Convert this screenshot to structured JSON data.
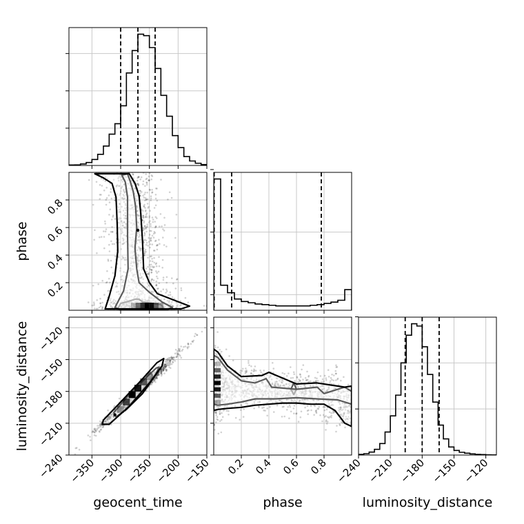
{
  "chart_data": {
    "type": "corner",
    "parameters": [
      "geocent_time",
      "phase",
      "luminosity_distance"
    ],
    "grid": true,
    "axes": {
      "geocent_time": {
        "range": [
          -390,
          -150
        ],
        "ticks": [
          -350,
          -300,
          -250,
          -200,
          -150
        ]
      },
      "phase": {
        "range": [
          0.0,
          1.0
        ],
        "ticks": [
          0.2,
          0.4,
          0.6,
          0.8
        ]
      },
      "luminosity_distance": {
        "range": [
          -240,
          -110
        ],
        "ticks": [
          -240,
          -210,
          -180,
          -150,
          -120
        ]
      }
    },
    "marginals": {
      "geocent_time": {
        "bin_edges": [
          -390,
          -380,
          -370,
          -360,
          -350,
          -340,
          -330,
          -320,
          -310,
          -300,
          -290,
          -280,
          -270,
          -260,
          -250,
          -240,
          -230,
          -220,
          -210,
          -200,
          -190,
          -180,
          -170,
          -160,
          -150
        ],
        "counts": [
          0.3,
          0.4,
          1.0,
          2.0,
          4.0,
          7.5,
          13.0,
          21.0,
          28.0,
          40.0,
          62.0,
          77.0,
          88.0,
          87.0,
          79.0,
          65.0,
          47.0,
          33.0,
          20.0,
          12.0,
          6.0,
          3.0,
          1.5,
          0.6
        ],
        "quantiles": [
          -300,
          -270,
          -240
        ],
        "y_ticks_count": [
          25,
          50,
          75
        ]
      },
      "phase": {
        "bin_edges": [
          0.0,
          0.05,
          0.1,
          0.15,
          0.2,
          0.25,
          0.3,
          0.35,
          0.4,
          0.45,
          0.5,
          0.55,
          0.6,
          0.65,
          0.7,
          0.75,
          0.8,
          0.85,
          0.9,
          0.95,
          1.0
        ],
        "counts": [
          210,
          40,
          28,
          18,
          14,
          12,
          10,
          9,
          8,
          7,
          7,
          7,
          7,
          7,
          8,
          9,
          11,
          13,
          16,
          33
        ],
        "quantiles": [
          0.003,
          0.13,
          0.78
        ],
        "y_ticks_count": [
          25,
          125,
          225
        ]
      },
      "luminosity_distance": {
        "bin_edges": [
          -240,
          -235,
          -230,
          -225,
          -220,
          -215,
          -210,
          -205,
          -200,
          -195,
          -190,
          -185,
          -180,
          -175,
          -170,
          -165,
          -160,
          -155,
          -150,
          -145,
          -140,
          -135,
          -130,
          -125,
          -120,
          -115,
          -110
        ],
        "counts": [
          0.3,
          0.6,
          1.3,
          2.5,
          5.0,
          10.0,
          17.0,
          26.0,
          40.0,
          52.0,
          57.0,
          56.0,
          47.0,
          35.0,
          23.0,
          13.0,
          7.0,
          3.5,
          2.0,
          1.2,
          0.8,
          0.5,
          0.3,
          0.2,
          0.1,
          0.05
        ],
        "quantiles": [
          -196,
          -180,
          -164
        ],
        "y_ticks_count": [
          20,
          40,
          60
        ]
      }
    },
    "joint": {
      "phase_vs_geocent_time": {
        "x": "geocent_time",
        "y": "phase",
        "ridge": [
          [
            0.0,
            -256
          ],
          [
            0.05,
            -262
          ],
          [
            0.1,
            -265
          ],
          [
            0.2,
            -268
          ],
          [
            0.3,
            -270
          ],
          [
            0.4,
            -272
          ],
          [
            0.5,
            -274
          ],
          [
            0.6,
            -276
          ],
          [
            0.7,
            -278
          ],
          [
            0.8,
            -280
          ],
          [
            0.9,
            -282
          ],
          [
            1.0,
            -284
          ]
        ],
        "density_peak": {
          "x": -256,
          "y": 0.03
        },
        "contours": [
          {
            "level": "inner",
            "points": [
              [
                -305,
                0.01
              ],
              [
                -300,
                0.05
              ],
              [
                -290,
                0.06
              ],
              [
                -275,
                0.08
              ],
              [
                -268,
                0.08
              ],
              [
                -262,
                0.06
              ],
              [
                -245,
                0.05
              ],
              [
                -230,
                0.04
              ],
              [
                -225,
                0.02
              ],
              [
                -230,
                0.008
              ],
              [
                -260,
                0.006
              ],
              [
                -290,
                0.006
              ],
              [
                -305,
                0.01
              ]
            ]
          },
          {
            "level": "mid",
            "points": [
              [
                -298,
                0.98
              ],
              [
                -292,
                0.93
              ],
              [
                -288,
                0.82
              ],
              [
                -288,
                0.55
              ],
              [
                -287,
                0.3
              ],
              [
                -295,
                0.14
              ],
              [
                -310,
                0.02
              ],
              [
                -300,
                0.005
              ],
              [
                -220,
                0.005
              ],
              [
                -210,
                0.02
              ],
              [
                -228,
                0.06
              ],
              [
                -250,
                0.13
              ],
              [
                -268,
                0.2
              ],
              [
                -272,
                0.3
              ],
              [
                -275,
                0.45
              ],
              [
                -272,
                0.6
              ],
              [
                -274,
                0.75
              ],
              [
                -278,
                0.86
              ],
              [
                -283,
                0.93
              ],
              [
                -288,
                0.99
              ]
            ]
          },
          {
            "level": "outer",
            "points": [
              [
                -345,
                0.99
              ],
              [
                -330,
                0.96
              ],
              [
                -315,
                0.92
              ],
              [
                -308,
                0.82
              ],
              [
                -306,
                0.62
              ],
              [
                -305,
                0.43
              ],
              [
                -310,
                0.25
              ],
              [
                -320,
                0.1
              ],
              [
                -327,
                0.01
              ],
              [
                -195,
                0.01
              ],
              [
                -180,
                0.03
              ],
              [
                -205,
                0.07
              ],
              [
                -236,
                0.12
              ],
              [
                -250,
                0.2
              ],
              [
                -260,
                0.3
              ],
              [
                -262,
                0.5
              ],
              [
                -265,
                0.7
              ],
              [
                -268,
                0.83
              ],
              [
                -275,
                0.92
              ],
              [
                -285,
                0.99
              ]
            ]
          }
        ]
      },
      "luminosity_distance_vs_geocent_time": {
        "x": "geocent_time",
        "y": "luminosity_distance",
        "line": {
          "slope": 0.5,
          "intercept": -45
        },
        "density_peak": {
          "x": -270,
          "y": -180
        },
        "contours": [
          {
            "level": "inner",
            "points": [
              [
                -296,
                -190
              ],
              [
                -282,
                -182
              ],
              [
                -260,
                -170
              ],
              [
                -248,
                -162
              ],
              [
                -244,
                -166
              ],
              [
                -258,
                -176
              ],
              [
                -280,
                -190
              ],
              [
                -292,
                -196
              ],
              [
                -296,
                -190
              ]
            ]
          },
          {
            "level": "mid",
            "points": [
              [
                -312,
                -200
              ],
              [
                -290,
                -186
              ],
              [
                -262,
                -170
              ],
              [
                -238,
                -158
              ],
              [
                -233,
                -157
              ],
              [
                -240,
                -165
              ],
              [
                -262,
                -182
              ],
              [
                -290,
                -197
              ],
              [
                -308,
                -204
              ],
              [
                -312,
                -200
              ]
            ]
          },
          {
            "level": "outer",
            "points": [
              [
                -330,
                -207
              ],
              [
                -300,
                -190
              ],
              [
                -265,
                -170
              ],
              [
                -237,
                -153
              ],
              [
                -225,
                -149
              ],
              [
                -228,
                -156
              ],
              [
                -250,
                -172
              ],
              [
                -285,
                -194
              ],
              [
                -320,
                -211
              ],
              [
                -332,
                -211
              ],
              [
                -330,
                -207
              ]
            ]
          }
        ]
      },
      "luminosity_distance_vs_phase": {
        "x": "phase",
        "y": "luminosity_distance",
        "ridge": [
          [
            0.0,
            -172
          ],
          [
            0.1,
            -174
          ],
          [
            0.2,
            -176
          ],
          [
            0.3,
            -178
          ],
          [
            0.4,
            -179
          ],
          [
            0.5,
            -180
          ],
          [
            0.6,
            -181
          ],
          [
            0.7,
            -182
          ],
          [
            0.8,
            -184
          ],
          [
            0.9,
            -187
          ],
          [
            1.0,
            -192
          ]
        ],
        "density_peak": {
          "x": 0.01,
          "y": -174
        },
        "contours": [
          {
            "level": "inner",
            "points": [
              [
                0.56,
                -178
              ],
              [
                0.58,
                -172
              ],
              [
                0.6,
                -178
              ],
              [
                0.58,
                -183
              ],
              [
                0.56,
                -178
              ]
            ]
          },
          {
            "level": "mid",
            "points": [
              [
                0.0,
                -146
              ],
              [
                0.03,
                -148
              ],
              [
                0.1,
                -160
              ],
              [
                0.2,
                -170
              ],
              [
                0.3,
                -172
              ],
              [
                0.38,
                -168
              ],
              [
                0.42,
                -176
              ],
              [
                0.6,
                -178
              ],
              [
                0.75,
                -176
              ],
              [
                0.8,
                -182
              ],
              [
                0.85,
                -180
              ],
              [
                0.95,
                -176
              ],
              [
                1.0,
                -180
              ],
              [
                1.0,
                -192
              ],
              [
                0.9,
                -188
              ],
              [
                0.75,
                -187
              ],
              [
                0.6,
                -186
              ],
              [
                0.45,
                -187
              ],
              [
                0.3,
                -187
              ],
              [
                0.2,
                -190
              ],
              [
                0.1,
                -192
              ],
              [
                0.03,
                -193
              ],
              [
                0.0,
                -192
              ]
            ]
          },
          {
            "level": "outer",
            "points": [
              [
                0.0,
                -140
              ],
              [
                0.03,
                -143
              ],
              [
                0.1,
                -156
              ],
              [
                0.2,
                -166
              ],
              [
                0.35,
                -165
              ],
              [
                0.4,
                -162
              ],
              [
                0.6,
                -173
              ],
              [
                0.75,
                -172
              ],
              [
                0.85,
                -174
              ],
              [
                0.95,
                -176
              ],
              [
                1.0,
                -175
              ],
              [
                1.0,
                -213
              ],
              [
                0.95,
                -210
              ],
              [
                0.88,
                -198
              ],
              [
                0.8,
                -192
              ],
              [
                0.7,
                -192
              ],
              [
                0.6,
                -191
              ],
              [
                0.5,
                -191
              ],
              [
                0.4,
                -192
              ],
              [
                0.3,
                -193
              ],
              [
                0.2,
                -195
              ],
              [
                0.1,
                -196
              ],
              [
                0.03,
                -197
              ],
              [
                0.0,
                -198
              ]
            ]
          }
        ]
      }
    }
  }
}
